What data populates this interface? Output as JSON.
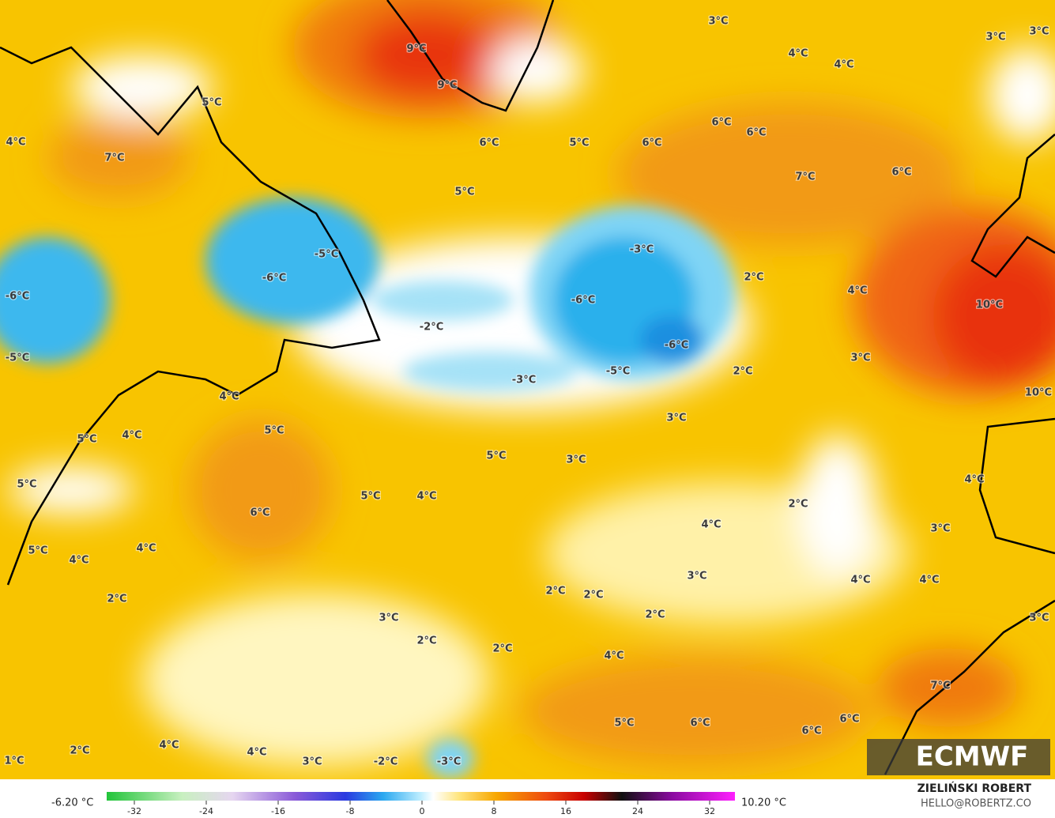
{
  "map": {
    "labels": [
      "9°C",
      "9°C",
      "3°C",
      "3°C",
      "3°C",
      "4°C",
      "4°C",
      "5°C",
      "4°C",
      "7°C",
      "6°C",
      "5°C",
      "6°C",
      "6°C",
      "6°C",
      "7°C",
      "6°C",
      "5°C",
      "-5°C",
      "-6°C",
      "-3°C",
      "-6°C",
      "-6°C",
      "2°C",
      "4°C",
      "10°C",
      "-2°C",
      "-6°C",
      "-5°C",
      "3°C",
      "-5°C",
      "2°C",
      "-3°C",
      "10°C",
      "4°C",
      "3°C",
      "5°C",
      "5°C",
      "4°C",
      "5°C",
      "3°C",
      "5°C",
      "4°C",
      "5°C",
      "4°C",
      "2°C",
      "6°C",
      "4°C",
      "3°C",
      "5°C",
      "4°C",
      "4°C",
      "3°C",
      "4°C",
      "4°C",
      "2°C",
      "2°C",
      "2°C",
      "2°C",
      "3°C",
      "3°C",
      "2°C",
      "2°C",
      "4°C",
      "7°C",
      "5°C",
      "6°C",
      "6°C",
      "6°C",
      "2°C",
      "4°C",
      "4°C",
      "3°C",
      "-2°C",
      "-3°C",
      "1°C"
    ],
    "logo": "ECMWF"
  },
  "colorbar": {
    "min_label": "-6.20 °C",
    "max_label": "10.20 °C",
    "ticks": [
      -32,
      -24,
      -16,
      -8,
      0,
      8,
      16,
      24,
      32
    ]
  },
  "credit": {
    "author": "ZIELIŃSKI ROBERT",
    "contact": "HELLO@ROBERTZ.CO"
  }
}
